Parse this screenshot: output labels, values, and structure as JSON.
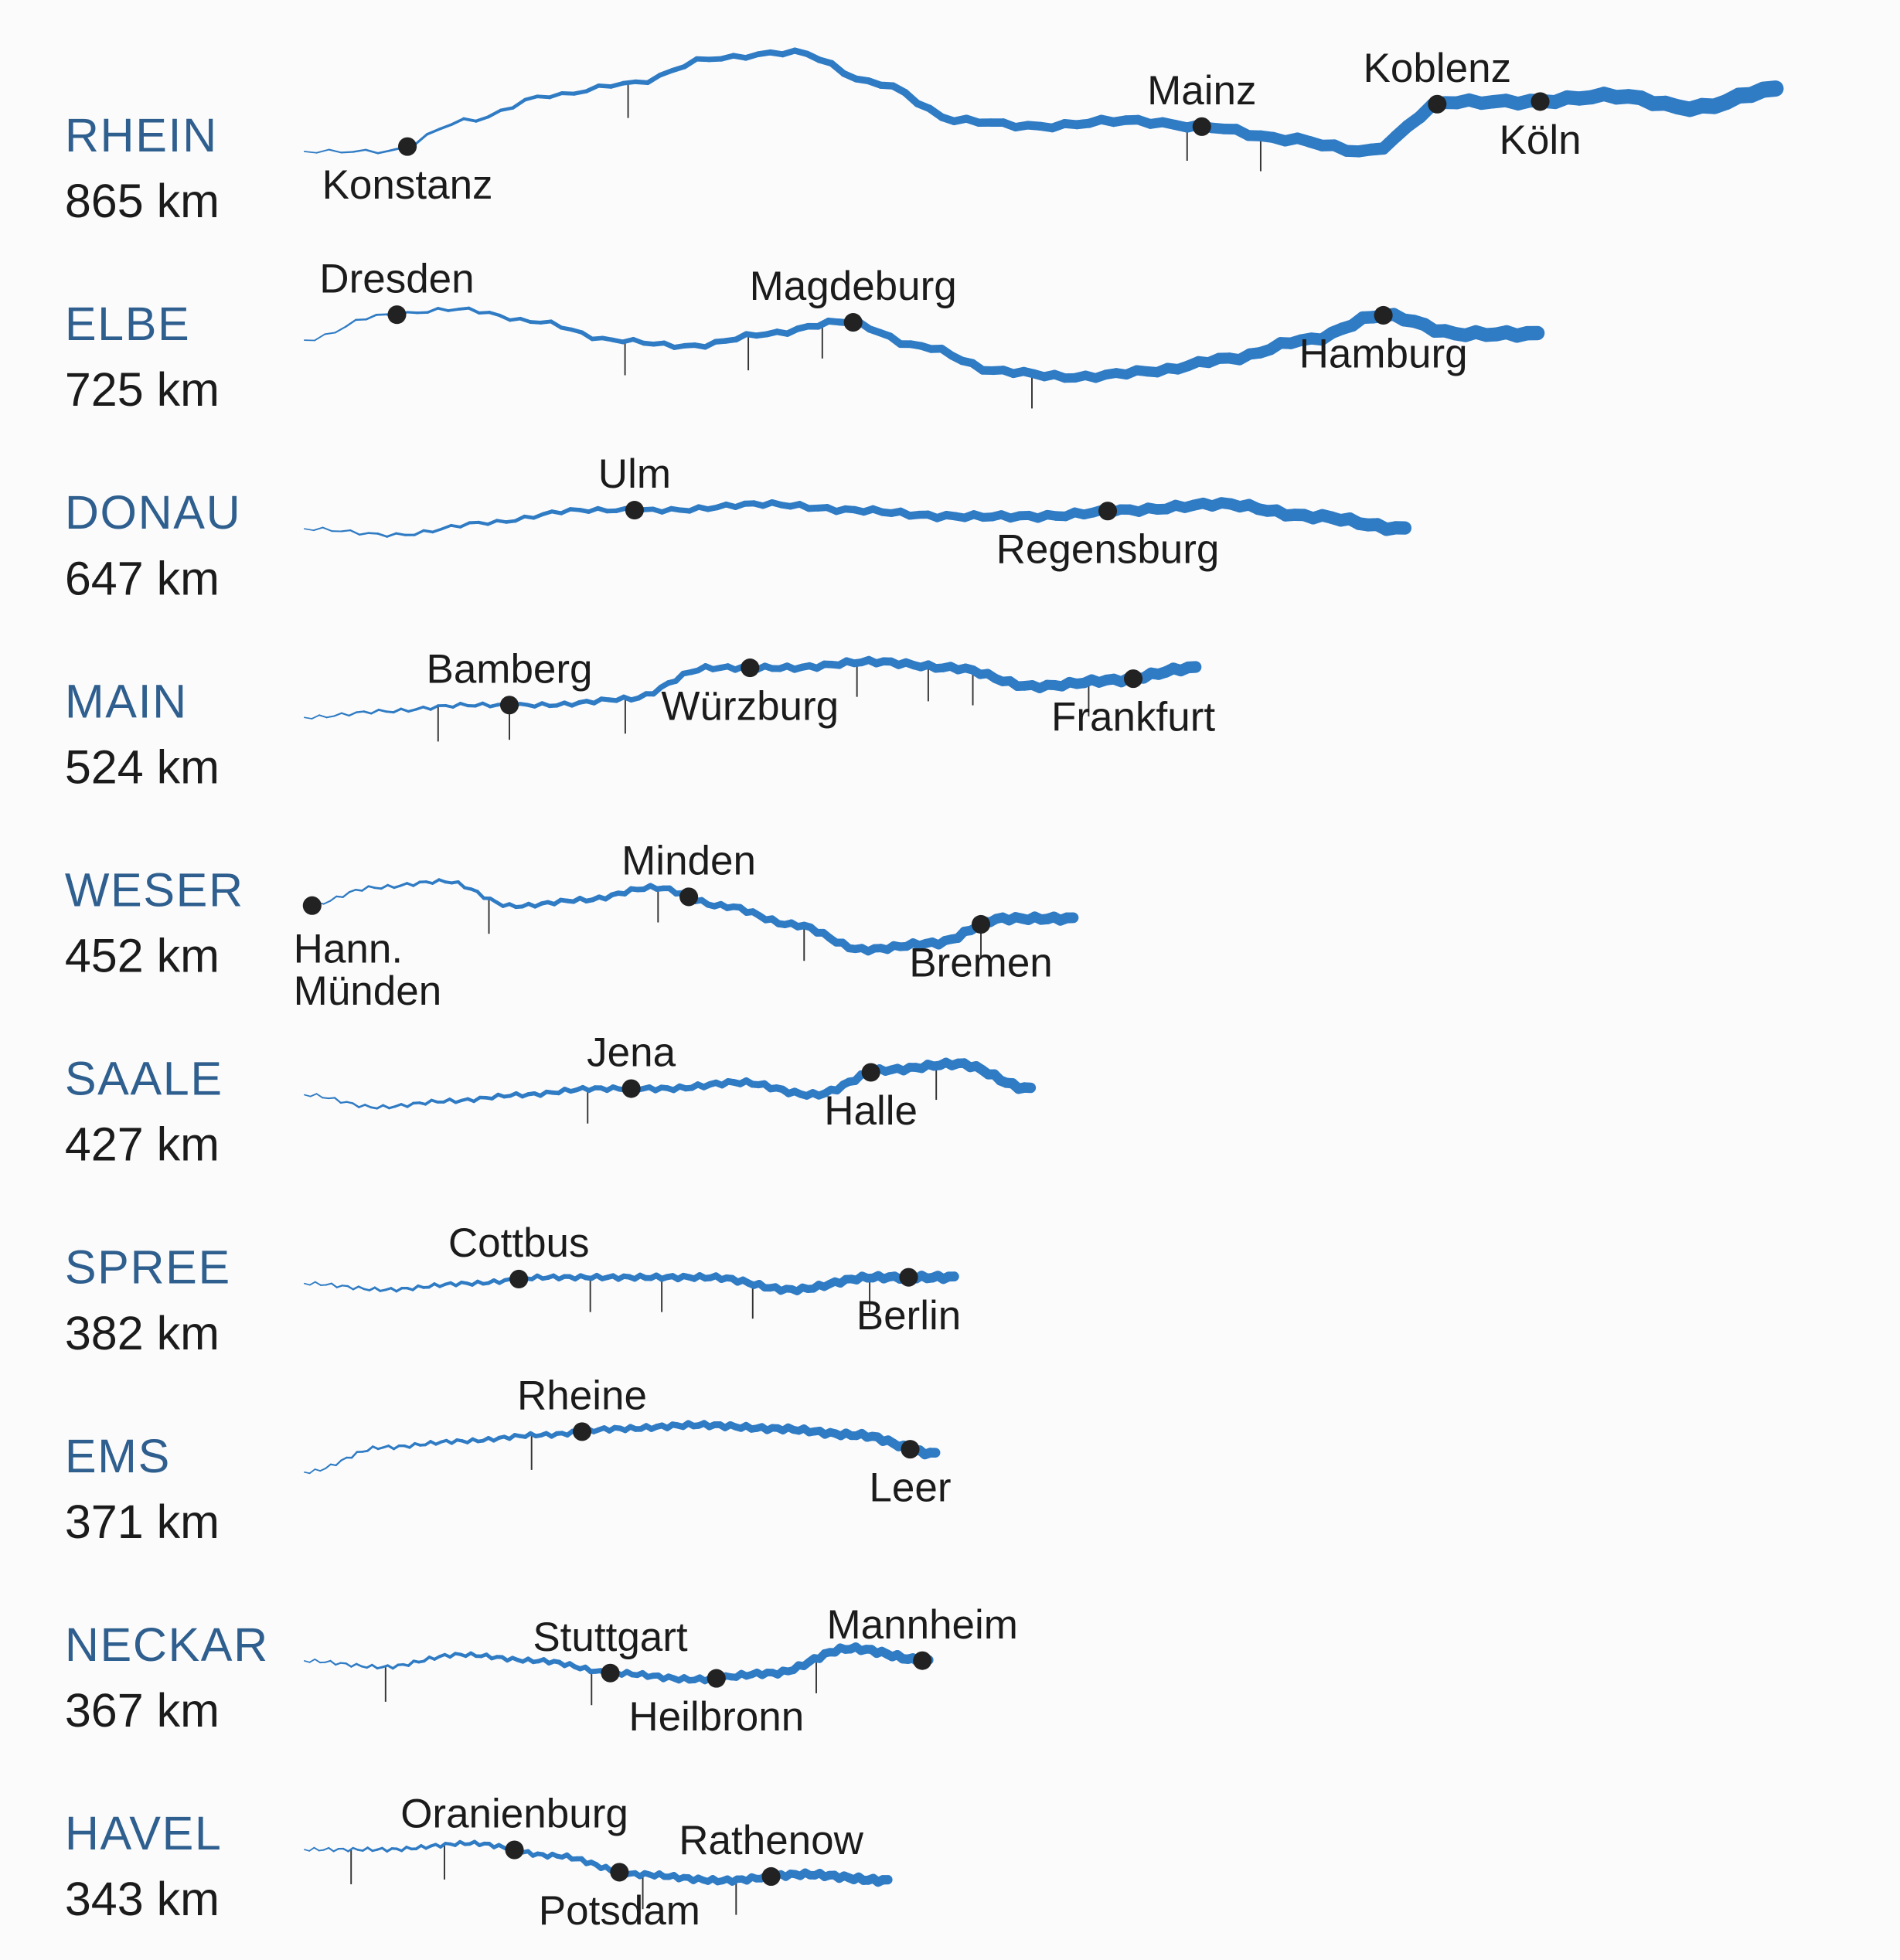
{
  "colors": {
    "river": "#2f7bc4",
    "river_name": "#2f5f8f",
    "text": "#1b1b1b",
    "dot": "#222222"
  },
  "rivers": [
    {
      "name": "RHEIN",
      "length": "865 km",
      "km": 865,
      "cities": [
        {
          "name": "Konstanz",
          "pos": 0.07,
          "label": "below"
        },
        {
          "name": "Mainz",
          "pos": 0.61,
          "label": "above"
        },
        {
          "name": "Koblenz",
          "pos": 0.77,
          "label": "above"
        },
        {
          "name": "Köln",
          "pos": 0.84,
          "label": "below"
        }
      ]
    },
    {
      "name": "ELBE",
      "length": "725 km",
      "km": 725,
      "cities": [
        {
          "name": "Dresden",
          "pos": 0.075,
          "label": "above"
        },
        {
          "name": "Magdeburg",
          "pos": 0.445,
          "label": "above"
        },
        {
          "name": "Hamburg",
          "pos": 0.875,
          "label": "below"
        }
      ]
    },
    {
      "name": "DONAU",
      "length": "647 km",
      "km": 647,
      "cities": [
        {
          "name": "Ulm",
          "pos": 0.3,
          "label": "above"
        },
        {
          "name": "Regensburg",
          "pos": 0.73,
          "label": "below"
        }
      ]
    },
    {
      "name": "MAIN",
      "length": "524 km",
      "km": 524,
      "cities": [
        {
          "name": "Bamberg",
          "pos": 0.23,
          "label": "above"
        },
        {
          "name": "Würzburg",
          "pos": 0.5,
          "label": "below"
        },
        {
          "name": "Frankfurt",
          "pos": 0.93,
          "label": "below"
        }
      ]
    },
    {
      "name": "WESER",
      "length": "452 km",
      "km": 452,
      "cities": [
        {
          "name": "Hann. Münden",
          "pos": 0.01,
          "label": "below"
        },
        {
          "name": "Minden",
          "pos": 0.5,
          "label": "above"
        },
        {
          "name": "Bremen",
          "pos": 0.88,
          "label": "below"
        }
      ]
    },
    {
      "name": "SAALE",
      "length": "427 km",
      "km": 427,
      "cities": [
        {
          "name": "Jena",
          "pos": 0.45,
          "label": "above"
        },
        {
          "name": "Halle",
          "pos": 0.78,
          "label": "below"
        }
      ]
    },
    {
      "name": "SPREE",
      "length": "382 km",
      "km": 382,
      "cities": [
        {
          "name": "Cottbus",
          "pos": 0.33,
          "label": "above"
        },
        {
          "name": "Berlin",
          "pos": 0.93,
          "label": "below"
        }
      ]
    },
    {
      "name": "EMS",
      "length": "371 km",
      "km": 371,
      "cities": [
        {
          "name": "Rheine",
          "pos": 0.44,
          "label": "above"
        },
        {
          "name": "Leer",
          "pos": 0.96,
          "label": "below"
        }
      ]
    },
    {
      "name": "NECKAR",
      "length": "367 km",
      "km": 367,
      "cities": [
        {
          "name": "Stuttgart",
          "pos": 0.49,
          "label": "above"
        },
        {
          "name": "Heilbronn",
          "pos": 0.66,
          "label": "below"
        },
        {
          "name": "Mannheim",
          "pos": 0.99,
          "label": "above"
        }
      ]
    },
    {
      "name": "HAVEL",
      "length": "343 km",
      "km": 343,
      "cities": [
        {
          "name": "Oranienburg",
          "pos": 0.36,
          "label": "above"
        },
        {
          "name": "Potsdam",
          "pos": 0.54,
          "label": "below"
        },
        {
          "name": "Rathenow",
          "pos": 0.8,
          "label": "above"
        }
      ]
    }
  ]
}
